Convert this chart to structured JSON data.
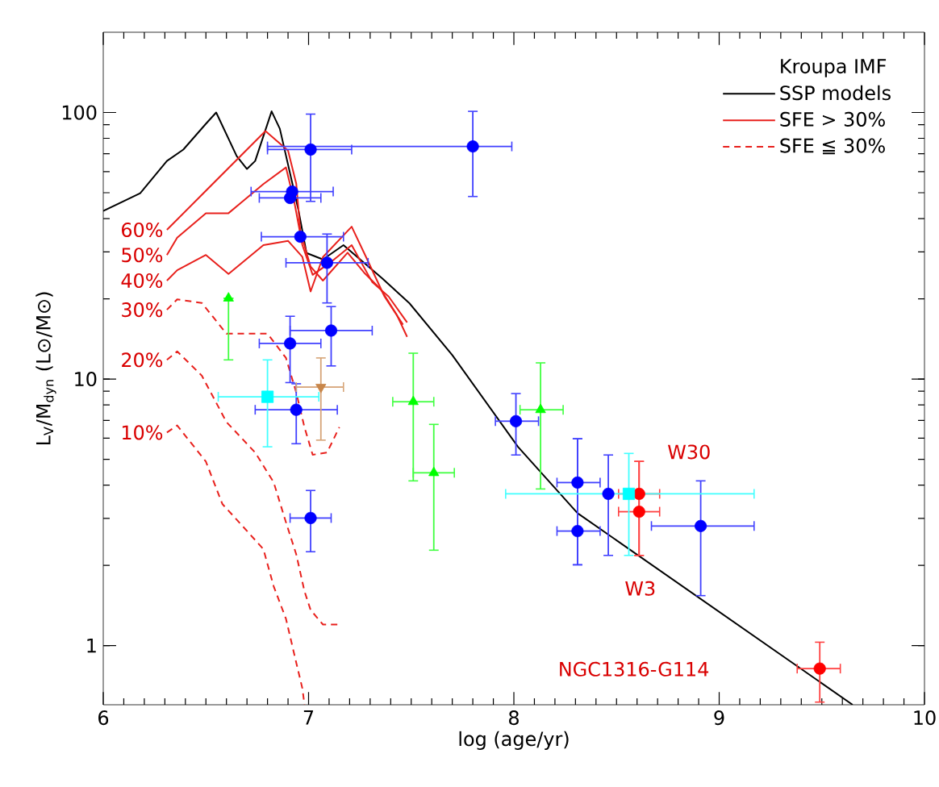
{
  "chart_data": {
    "type": "scatter",
    "xlabel": "log (age/yr)",
    "ylabel": "L$_{V}$/M$_{dyn}$ (L⊙/M⊙)",
    "legend_title": "Kroupa IMF",
    "xlim": [
      6,
      10
    ],
    "xticks": [
      6,
      7,
      8,
      9,
      10
    ],
    "ylim": [
      0.6,
      200
    ],
    "yticks": [
      1,
      10,
      100
    ],
    "log": "y",
    "legend": "top right",
    "grid": false,
    "series": [
      {
        "name": "SSP models",
        "type": "line",
        "color": "#000000",
        "line_style": "solid",
        "marker": "none",
        "x": [
          6.0,
          6.18,
          6.31,
          6.39,
          6.5,
          6.55,
          6.65,
          6.7,
          6.74,
          6.82,
          6.86,
          6.95,
          6.99,
          7.07,
          7.17,
          7.36,
          7.49,
          7.7,
          8.02,
          8.31,
          9.65
        ],
        "values": [
          42.7,
          49.8,
          65.8,
          72.6,
          90.7,
          100,
          68.6,
          61.4,
          65.8,
          101,
          86.9,
          43.3,
          29.7,
          28.1,
          31.8,
          23.8,
          19.3,
          12.3,
          5.57,
          3.14,
          0.6
        ]
      },
      {
        "name": "SFE > 30%",
        "type": "line",
        "color": "#e8201c",
        "line_style": "solid",
        "marker": "none",
        "x": [
          6.31,
          6.79,
          6.9,
          6.94,
          6.96,
          7.01,
          7.07,
          7.19,
          7.27,
          7.35,
          7.43,
          7.48
        ],
        "values": [
          36.3,
          85.2,
          71.9,
          54.1,
          35.8,
          26.4,
          23.4,
          29.8,
          25.1,
          21.8,
          17.4,
          14.4
        ]
      },
      {
        "type": "line",
        "color": "#e8201c",
        "line_style": "solid",
        "marker": "none",
        "x": [
          6.31,
          6.36,
          6.5,
          6.61,
          6.78,
          6.89,
          6.93,
          6.97,
          7.02,
          7.11,
          7.21,
          7.31,
          7.39,
          7.48
        ],
        "values": [
          29.2,
          33.9,
          41.9,
          41.9,
          53.9,
          62.2,
          46.4,
          31.8,
          24.6,
          27.5,
          31.8,
          23.1,
          20.4,
          16.3
        ]
      },
      {
        "type": "line",
        "color": "#e8201c",
        "line_style": "solid",
        "marker": "none",
        "x": [
          6.31,
          6.36,
          6.5,
          6.61,
          6.78,
          6.9,
          6.97,
          7.01,
          7.07,
          7.21,
          7.28,
          7.37,
          7.46
        ],
        "values": [
          23.4,
          25.6,
          29.2,
          24.8,
          31.8,
          33.0,
          28.7,
          21.3,
          28.7,
          37.3,
          28.7,
          20.4,
          16.0
        ]
      },
      {
        "name": "SFE ≦ 30%",
        "type": "line",
        "color": "#e8201c",
        "line_style": "dashed",
        "marker": "none",
        "x": [
          6.31,
          6.36,
          6.48,
          6.6,
          6.7,
          6.8,
          6.89,
          6.94,
          6.98,
          7.02,
          7.09,
          7.15
        ],
        "values": [
          18.2,
          19.9,
          19.3,
          14.8,
          14.8,
          14.8,
          12.0,
          8.9,
          6.6,
          5.2,
          5.3,
          6.6
        ]
      },
      {
        "type": "line",
        "color": "#e8201c",
        "line_style": "dashed",
        "marker": "none",
        "x": [
          6.31,
          6.36,
          6.48,
          6.6,
          6.74,
          6.83,
          6.89,
          6.94,
          6.98,
          7.01,
          7.07,
          7.15
        ],
        "values": [
          11.8,
          12.7,
          10.3,
          6.9,
          5.3,
          4.1,
          2.9,
          2.2,
          1.6,
          1.36,
          1.2,
          1.2
        ]
      },
      {
        "type": "line",
        "color": "#e8201c",
        "line_style": "dashed",
        "marker": "none",
        "x": [
          6.31,
          6.36,
          6.5,
          6.58,
          6.68,
          6.78,
          6.83,
          6.89,
          6.93,
          6.97,
          6.98
        ],
        "values": [
          6.3,
          6.7,
          4.9,
          3.4,
          2.8,
          2.3,
          1.67,
          1.26,
          0.93,
          0.69,
          0.6
        ]
      },
      {
        "color": "#0000ff",
        "marker": "circle",
        "x": [
          7.01,
          7.8,
          6.92,
          6.91,
          6.96,
          7.09,
          7.11,
          6.91,
          6.94,
          7.01,
          8.01,
          8.31,
          8.31,
          8.46,
          8.91
        ],
        "values": [
          72.6,
          74.6,
          50.5,
          47.8,
          34.2,
          27.3,
          15.2,
          13.6,
          7.67,
          3.01,
          6.95,
          4.09,
          2.69,
          3.71,
          2.81
        ],
        "errors": [
          [
            46.4,
            98.6
          ],
          [
            48.4,
            101
          ],
          null,
          null,
          null,
          [
            19.3,
            35.0
          ],
          [
            11.2,
            18.7
          ],
          [
            9.7,
            17.2
          ],
          [
            5.72,
            9.6
          ],
          [
            2.25,
            3.82
          ],
          [
            5.19,
            8.82
          ],
          [
            2.01,
            5.97
          ],
          [
            2.01,
            5.97
          ],
          [
            2.18,
            5.19
          ],
          [
            1.54,
            4.15
          ]
        ],
        "xerrors": [
          [
            6.8,
            7.21
          ],
          [
            6.8,
            7.99
          ],
          [
            6.72,
            7.12
          ],
          [
            6.76,
            7.06
          ],
          [
            6.77,
            7.17
          ],
          [
            6.89,
            7.29
          ],
          [
            6.91,
            7.31
          ],
          [
            6.76,
            7.06
          ],
          [
            6.74,
            7.14
          ],
          [
            6.91,
            7.11
          ],
          [
            7.91,
            8.12
          ],
          [
            8.21,
            8.42
          ],
          [
            8.21,
            8.42
          ],
          null,
          [
            8.67,
            9.17
          ]
        ]
      },
      {
        "color": "#ff0000",
        "marker": "circle",
        "x": [
          8.61,
          8.61,
          9.49
        ],
        "values": [
          3.71,
          3.18,
          0.82
        ],
        "errors": [
          [
            2.18,
            4.91
          ],
          [
            2.18,
            4.91
          ],
          [
            0.614,
            1.03
          ]
        ],
        "xerrors": [
          [
            8.51,
            8.71
          ],
          [
            8.51,
            8.71
          ],
          [
            9.38,
            9.59
          ]
        ]
      },
      {
        "color": "#00ffff",
        "marker": "square",
        "x": [
          8.56,
          6.8
        ],
        "values": [
          3.71,
          8.58
        ],
        "errors": [
          [
            2.18,
            5.26
          ],
          [
            5.57,
            11.8
          ]
        ],
        "xerrors": [
          [
            7.96,
            9.17
          ],
          [
            6.56,
            7.05
          ]
        ]
      },
      {
        "color": "#c8864a",
        "marker": "triangle-down",
        "x": [
          7.06
        ],
        "values": [
          9.33
        ],
        "errors": [
          [
            5.9,
            12.0
          ]
        ],
        "xerrors": [
          [
            6.94,
            7.17
          ]
        ]
      },
      {
        "color": "#00ff00",
        "marker": "triangle",
        "x": [
          7.51,
          7.61,
          8.13,
          6.61
        ],
        "values": [
          8.22,
          4.45,
          7.67,
          20.1
        ],
        "errors": [
          [
            4.15,
            12.5
          ],
          [
            2.28,
            6.76
          ],
          [
            3.87,
            11.5
          ],
          [
            11.8,
            20.1
          ]
        ],
        "xerrors": [
          [
            7.41,
            7.61
          ],
          [
            7.51,
            7.71
          ],
          [
            8.03,
            8.24
          ],
          null
        ]
      }
    ],
    "annotations": [
      "60%",
      "50%",
      "40%",
      "30%",
      "20%",
      "10%",
      {
        "text": "W30",
        "x": 8.61,
        "y": 3.71
      },
      "W3",
      "NGC1316-G114"
    ]
  }
}
